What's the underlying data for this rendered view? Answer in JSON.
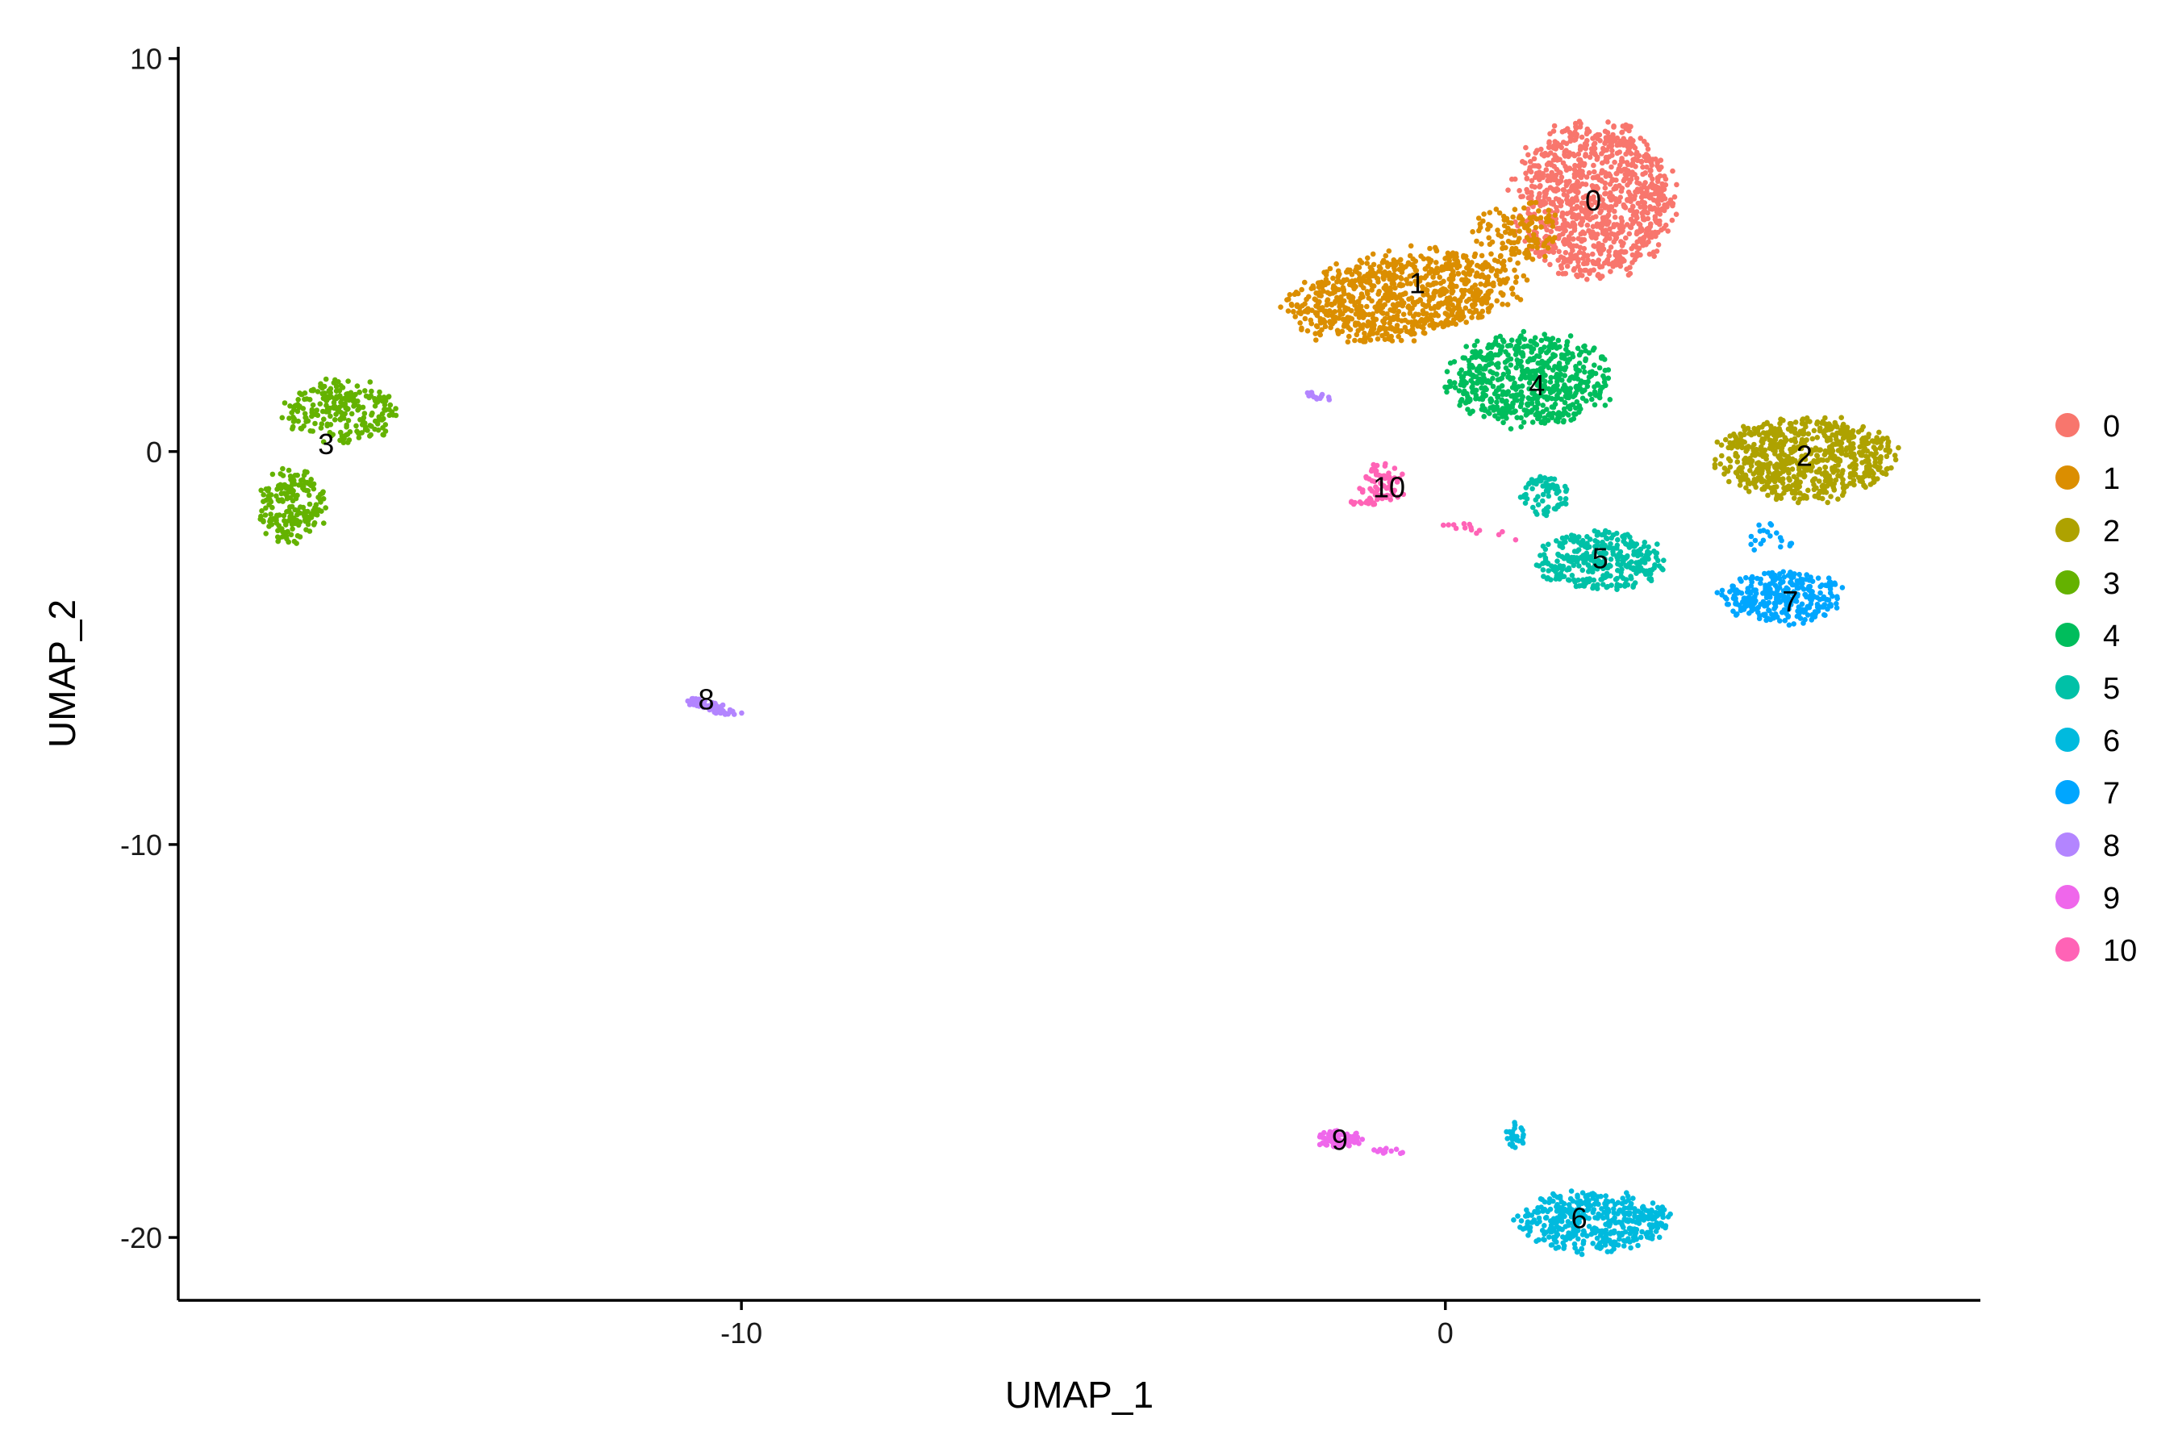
{
  "chart_data": {
    "type": "scatter",
    "title": "",
    "xlabel": "UMAP_1",
    "ylabel": "UMAP_2",
    "xlim": [
      -18,
      7.6
    ],
    "ylim": [
      -21.6,
      10.3
    ],
    "x_ticks": [
      {
        "value": -10,
        "label": "-10"
      },
      {
        "value": 0,
        "label": "0"
      }
    ],
    "y_ticks": [
      {
        "value": 10,
        "label": "10"
      },
      {
        "value": 0,
        "label": "0"
      },
      {
        "value": -10,
        "label": "-10"
      },
      {
        "value": -20,
        "label": "-20"
      }
    ],
    "grid": false,
    "legend_position": "right",
    "series": [
      {
        "name": "0",
        "color": "#F8766D",
        "label_at": [
          2.1,
          6.4
        ],
        "blobs": [
          {
            "cx": 2.1,
            "cy": 6.4,
            "rx": 1.25,
            "ry": 2.2,
            "rot": 0,
            "n": 1000
          }
        ]
      },
      {
        "name": "1",
        "color": "#DB8E00",
        "label_at": [
          -0.4,
          4.3
        ],
        "blobs": [
          {
            "cx": -0.6,
            "cy": 4.0,
            "rx": 1.9,
            "ry": 1.2,
            "rot": 20,
            "n": 850
          },
          {
            "cx": 1.0,
            "cy": 5.6,
            "rx": 0.7,
            "ry": 0.9,
            "rot": 0,
            "n": 120
          }
        ]
      },
      {
        "name": "2",
        "color": "#AEA200",
        "label_at": [
          5.1,
          -0.1
        ],
        "blobs": [
          {
            "cx": 5.1,
            "cy": -0.2,
            "rx": 1.4,
            "ry": 1.2,
            "rot": 0,
            "n": 700
          }
        ]
      },
      {
        "name": "3",
        "color": "#64B200",
        "label_at": [
          -15.9,
          0.2
        ],
        "blobs": [
          {
            "cx": -15.7,
            "cy": 1.0,
            "rx": 0.9,
            "ry": 0.9,
            "rot": 0,
            "n": 230
          },
          {
            "cx": -16.4,
            "cy": -1.4,
            "rx": 0.55,
            "ry": 1.0,
            "rot": 0,
            "n": 190
          }
        ]
      },
      {
        "name": "4",
        "color": "#00BD5C",
        "label_at": [
          1.3,
          1.7
        ],
        "blobs": [
          {
            "cx": 1.2,
            "cy": 1.8,
            "rx": 1.3,
            "ry": 1.3,
            "rot": 0,
            "n": 600
          }
        ]
      },
      {
        "name": "5",
        "color": "#00C1A7",
        "label_at": [
          2.2,
          -2.7
        ],
        "blobs": [
          {
            "cx": 2.2,
            "cy": -2.8,
            "rx": 1.0,
            "ry": 0.85,
            "rot": 0,
            "n": 330
          },
          {
            "cx": 1.4,
            "cy": -1.1,
            "rx": 0.4,
            "ry": 0.6,
            "rot": 0,
            "n": 70
          }
        ]
      },
      {
        "name": "6",
        "color": "#00BADE",
        "label_at": [
          1.9,
          -19.5
        ],
        "blobs": [
          {
            "cx": 2.1,
            "cy": -19.6,
            "rx": 1.2,
            "ry": 0.85,
            "rot": 0,
            "n": 420
          },
          {
            "cx": 1.0,
            "cy": -17.4,
            "rx": 0.15,
            "ry": 0.4,
            "rot": 0,
            "n": 25
          }
        ]
      },
      {
        "name": "7",
        "color": "#00A6FF",
        "label_at": [
          4.9,
          -3.8
        ],
        "blobs": [
          {
            "cx": 4.8,
            "cy": -3.7,
            "rx": 0.95,
            "ry": 0.75,
            "rot": 0,
            "n": 300
          },
          {
            "cx": 4.7,
            "cy": -2.2,
            "rx": 0.4,
            "ry": 0.5,
            "rot": 0,
            "n": 20
          }
        ]
      },
      {
        "name": "8",
        "color": "#B385FF",
        "label_at": [
          -10.5,
          -6.3
        ],
        "blobs": [
          {
            "cx": -10.4,
            "cy": -6.5,
            "rx": 0.45,
            "ry": 0.14,
            "rot": -25,
            "n": 60
          },
          {
            "cx": -1.8,
            "cy": 1.4,
            "rx": 0.22,
            "ry": 0.1,
            "rot": -25,
            "n": 15
          }
        ]
      },
      {
        "name": "9",
        "color": "#EF67EB",
        "label_at": [
          -1.5,
          -17.5
        ],
        "blobs": [
          {
            "cx": -1.5,
            "cy": -17.5,
            "rx": 0.35,
            "ry": 0.25,
            "rot": 0,
            "n": 80
          },
          {
            "cx": -0.8,
            "cy": -17.8,
            "rx": 0.25,
            "ry": 0.08,
            "rot": -15,
            "n": 12
          }
        ]
      },
      {
        "name": "10",
        "color": "#FF63B6",
        "label_at": [
          -0.8,
          -0.9
        ],
        "blobs": [
          {
            "cx": -0.9,
            "cy": -0.8,
            "rx": 0.35,
            "ry": 0.6,
            "rot": 0,
            "n": 70
          },
          {
            "cx": -1.1,
            "cy": -1.3,
            "rx": 0.25,
            "ry": 0.12,
            "rot": 0,
            "n": 15
          },
          {
            "cx": 0.5,
            "cy": -2.0,
            "rx": 0.7,
            "ry": 0.15,
            "rot": -20,
            "n": 14
          }
        ]
      }
    ]
  }
}
